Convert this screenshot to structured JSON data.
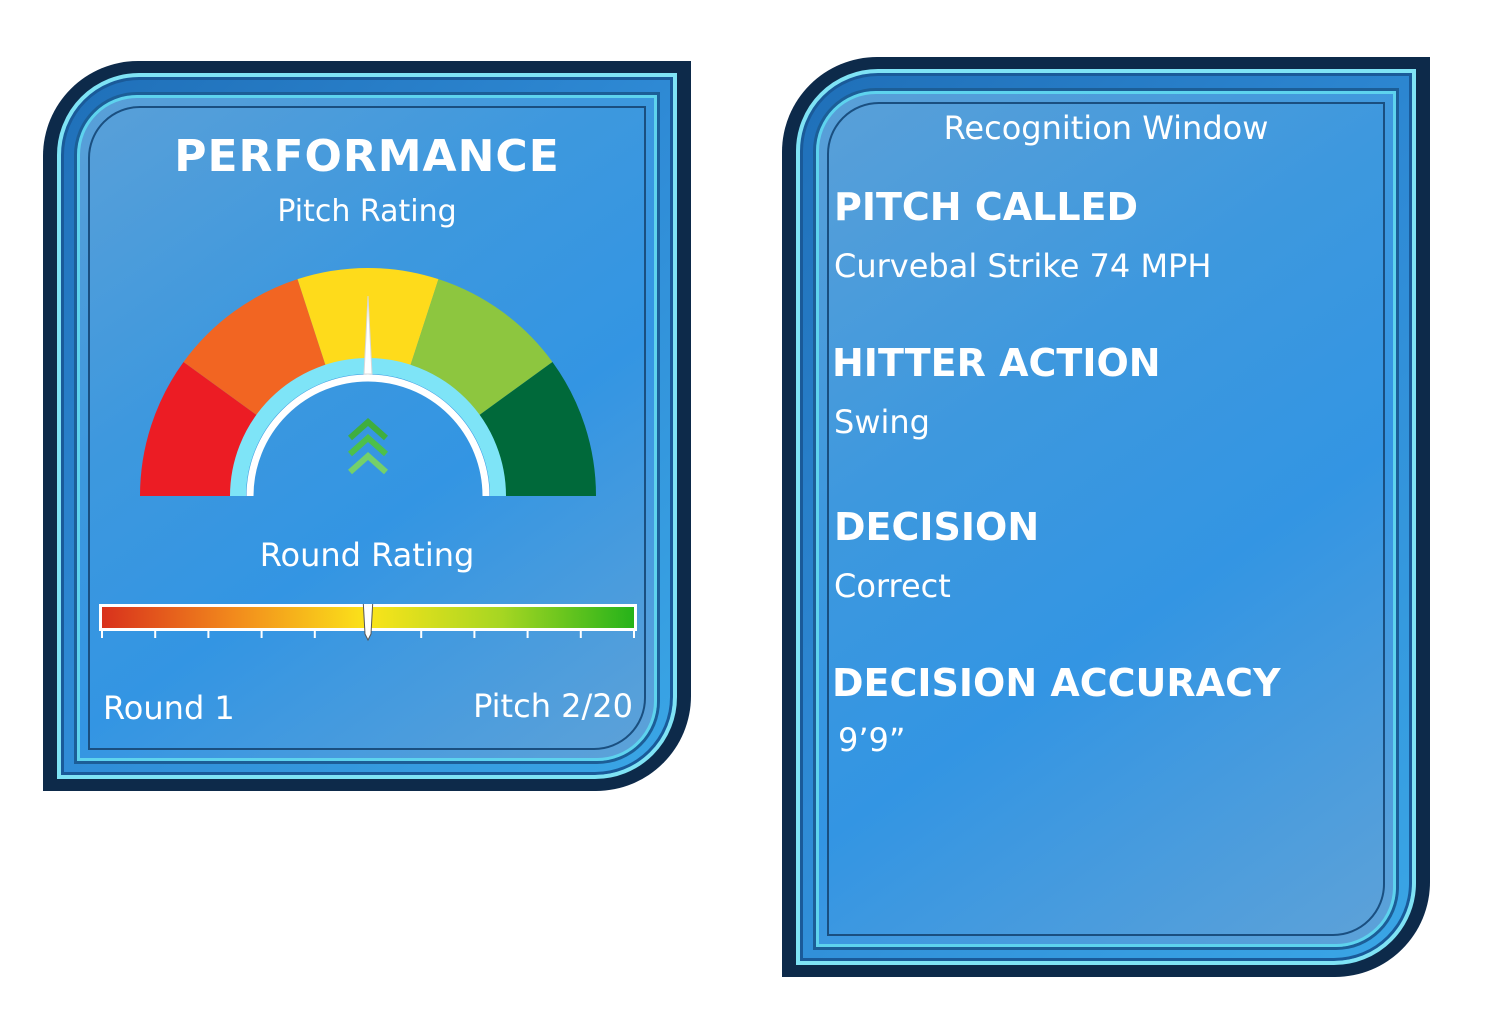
{
  "performance": {
    "title": "PERFORMANCE",
    "subtitle": "Pitch Rating",
    "round_rating_label": "Round Rating",
    "round_label": "Round 1",
    "pitch_label": "Pitch 2/20",
    "gauge_level": 0.5,
    "round_rating_level": 0.5,
    "gauge_colors": [
      "#ec1c24",
      "#f26522",
      "#fedb1b",
      "#8dc63f",
      "#00693a"
    ],
    "trend_icon": "double-chevron-up-icon"
  },
  "recognition": {
    "title": "Recognition Window",
    "pitch_called_label": "PITCH CALLED",
    "pitch_called_value": "Curvebal Strike 74 MPH",
    "hitter_action_label": "HITTER ACTION",
    "hitter_action_value": "Swing",
    "decision_label": "DECISION",
    "decision_value": "Correct",
    "decision_accuracy_label": "DECISION ACCURACY",
    "decision_accuracy_value": "9’9”"
  }
}
